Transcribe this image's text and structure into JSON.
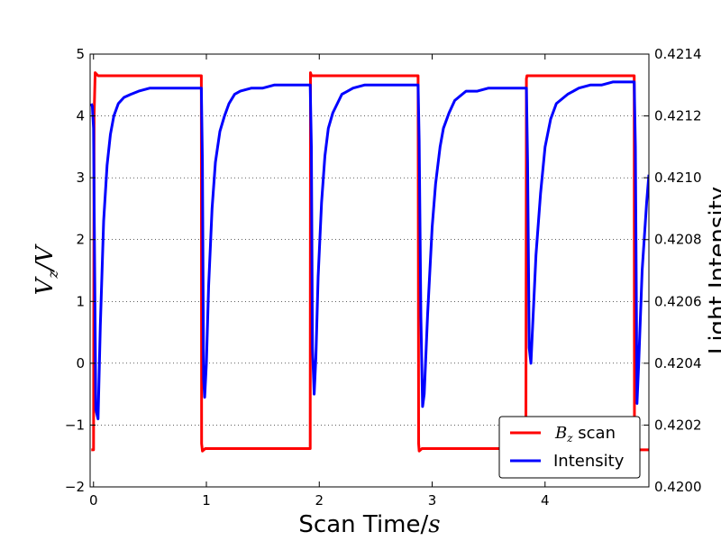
{
  "chart_data": {
    "type": "line",
    "xlabel_text": "Scan Time/",
    "xlabel_math": "s",
    "ylabel_main": "V",
    "ylabel_sub": "z",
    "ylabel_sep": "/",
    "ylabel_tail": "V",
    "y2label": "Light Intensity",
    "xlim": [
      -0.03,
      4.92
    ],
    "ylim": [
      -2,
      5
    ],
    "y2lim": [
      0.42,
      0.4214
    ],
    "xticks": [
      0,
      1,
      2,
      3,
      4
    ],
    "xtick_labels": [
      "0",
      "1",
      "2",
      "3",
      "4"
    ],
    "yticks": [
      -2,
      -1,
      0,
      1,
      2,
      3,
      4,
      5
    ],
    "ytick_labels": [
      "−2",
      "−1",
      "0",
      "1",
      "2",
      "3",
      "4",
      "5"
    ],
    "y2ticks": [
      0.42,
      0.4202,
      0.4204,
      0.4206,
      0.4208,
      0.421,
      0.4212,
      0.4214
    ],
    "y2tick_labels": [
      "0.4200",
      "0.4202",
      "0.4204",
      "0.4206",
      "0.4208",
      "0.4210",
      "0.4212",
      "0.4214"
    ],
    "grid": "horizontal dotted",
    "legend_placement": "lower-right",
    "series": [
      {
        "name_math": "B",
        "name_sub": "z",
        "name_text": " scan",
        "axis": "left",
        "color": "#ff0000",
        "x": [
          -0.02,
          0.0,
          0.005,
          0.015,
          0.04,
          0.955,
          0.958,
          0.965,
          0.99,
          1.92,
          1.922,
          1.93,
          1.955,
          2.875,
          2.88,
          2.885,
          2.91,
          3.83,
          3.835,
          3.84,
          3.86,
          4.79,
          4.792,
          4.8,
          4.82,
          4.92
        ],
        "values": [
          -1.4,
          -1.4,
          4.0,
          4.7,
          4.65,
          4.65,
          -1.3,
          -1.42,
          -1.38,
          -1.38,
          4.7,
          4.65,
          4.65,
          4.65,
          -1.3,
          -1.42,
          -1.38,
          -1.38,
          4.6,
          4.65,
          4.65,
          4.65,
          -1.4,
          -1.42,
          -1.4,
          -1.4
        ]
      },
      {
        "name": "Intensity",
        "axis": "right",
        "color": "#0000ff",
        "x": [
          -0.02,
          -0.01,
          0.0,
          0.02,
          0.04,
          0.06,
          0.09,
          0.12,
          0.15,
          0.18,
          0.22,
          0.27,
          0.33,
          0.4,
          0.5,
          0.6,
          0.75,
          0.9,
          0.955,
          0.965,
          0.975,
          0.985,
          1.0,
          1.02,
          1.05,
          1.08,
          1.12,
          1.16,
          1.2,
          1.25,
          1.3,
          1.4,
          1.5,
          1.6,
          1.7,
          1.8,
          1.92,
          1.93,
          1.94,
          1.955,
          1.97,
          1.99,
          2.02,
          2.05,
          2.08,
          2.12,
          2.16,
          2.2,
          2.3,
          2.4,
          2.5,
          2.6,
          2.7,
          2.8,
          2.875,
          2.885,
          2.9,
          2.915,
          2.93,
          2.96,
          3.0,
          3.03,
          3.07,
          3.1,
          3.15,
          3.2,
          3.3,
          3.4,
          3.5,
          3.6,
          3.7,
          3.8,
          3.835,
          3.845,
          3.86,
          3.875,
          3.89,
          3.92,
          3.96,
          4.0,
          4.05,
          4.1,
          4.2,
          4.3,
          4.4,
          4.5,
          4.6,
          4.7,
          4.79,
          4.8,
          4.815,
          4.83,
          4.86,
          4.9,
          4.92
        ],
        "values": [
          0.42124,
          0.42123,
          0.42116,
          0.42025,
          0.42022,
          0.42052,
          0.42086,
          0.42104,
          0.42114,
          0.4212,
          0.42124,
          0.42126,
          0.42127,
          0.42128,
          0.42129,
          0.42129,
          0.42129,
          0.42129,
          0.42129,
          0.42105,
          0.42035,
          0.42029,
          0.4204,
          0.42065,
          0.4209,
          0.42105,
          0.42115,
          0.4212,
          0.42124,
          0.42127,
          0.42128,
          0.42129,
          0.42129,
          0.4213,
          0.4213,
          0.4213,
          0.4213,
          0.4211,
          0.42045,
          0.4203,
          0.42042,
          0.42068,
          0.42092,
          0.42107,
          0.42116,
          0.42121,
          0.42124,
          0.42127,
          0.42129,
          0.4213,
          0.4213,
          0.4213,
          0.4213,
          0.4213,
          0.4213,
          0.42112,
          0.42055,
          0.42026,
          0.4203,
          0.42056,
          0.42084,
          0.42098,
          0.4211,
          0.42116,
          0.42121,
          0.42125,
          0.42128,
          0.42128,
          0.42129,
          0.42129,
          0.42129,
          0.42129,
          0.42129,
          0.42105,
          0.42045,
          0.4204,
          0.42052,
          0.42075,
          0.42095,
          0.4211,
          0.42119,
          0.42124,
          0.42127,
          0.42129,
          0.4213,
          0.4213,
          0.42131,
          0.42131,
          0.42131,
          0.4211,
          0.42027,
          0.4204,
          0.4207,
          0.42092,
          0.42101
        ]
      }
    ]
  }
}
